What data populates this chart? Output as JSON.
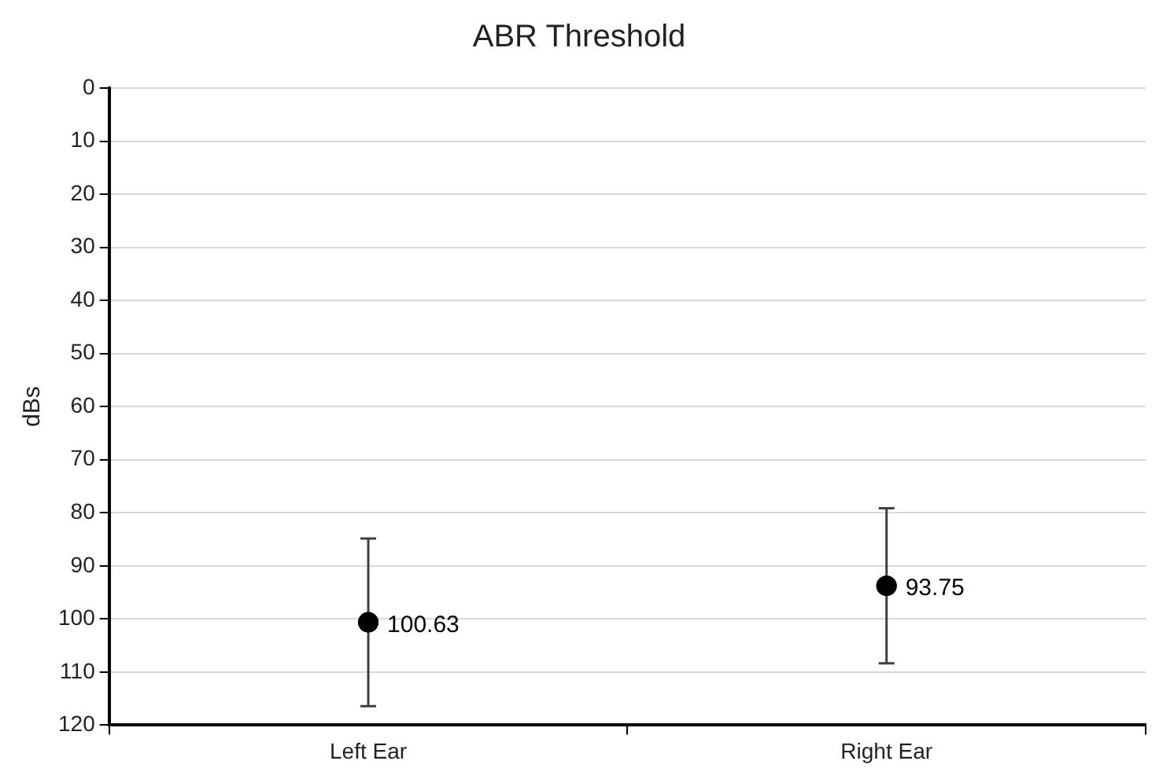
{
  "chart_data": {
    "type": "scatter",
    "title": "ABR Threshold",
    "ylabel": "dBs",
    "categories": [
      "Left Ear",
      "Right Ear"
    ],
    "series": [
      {
        "color": "#000000",
        "values": [
          100.63,
          93.75
        ],
        "errors": [
          15.8,
          14.6
        ]
      }
    ],
    "ylim": [
      120,
      0
    ],
    "yticks": [
      0,
      10,
      20,
      30,
      40,
      50,
      60,
      70,
      80,
      90,
      100,
      110,
      120
    ],
    "grid": "y",
    "marker": "circle",
    "data_labels": true,
    "legend": false
  }
}
